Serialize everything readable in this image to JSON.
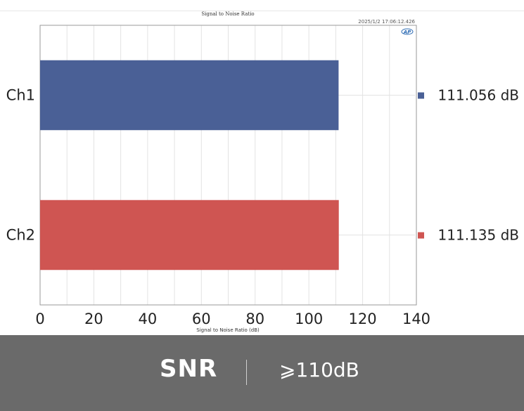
{
  "chart_data": {
    "type": "bar",
    "orientation": "horizontal",
    "title": "Signal to Noise Ratio",
    "timestamp": "2025/1/2 17:06:12.426",
    "xlabel": "Signal to Noise Ratio (dB)",
    "ylabel": "",
    "categories": [
      "Ch1",
      "Ch2"
    ],
    "values": [
      111.056,
      111.135
    ],
    "value_labels": [
      "111.056 dB",
      "111.135 dB"
    ],
    "colors": [
      "#4a6096",
      "#cf5552"
    ],
    "xlim": [
      0,
      140
    ],
    "xticks": [
      "0",
      "20",
      "40",
      "60",
      "80",
      "100",
      "120",
      "140"
    ],
    "grid": true,
    "logo": "AP"
  },
  "footer": {
    "metric": "SNR",
    "value": "⩾110dB"
  }
}
